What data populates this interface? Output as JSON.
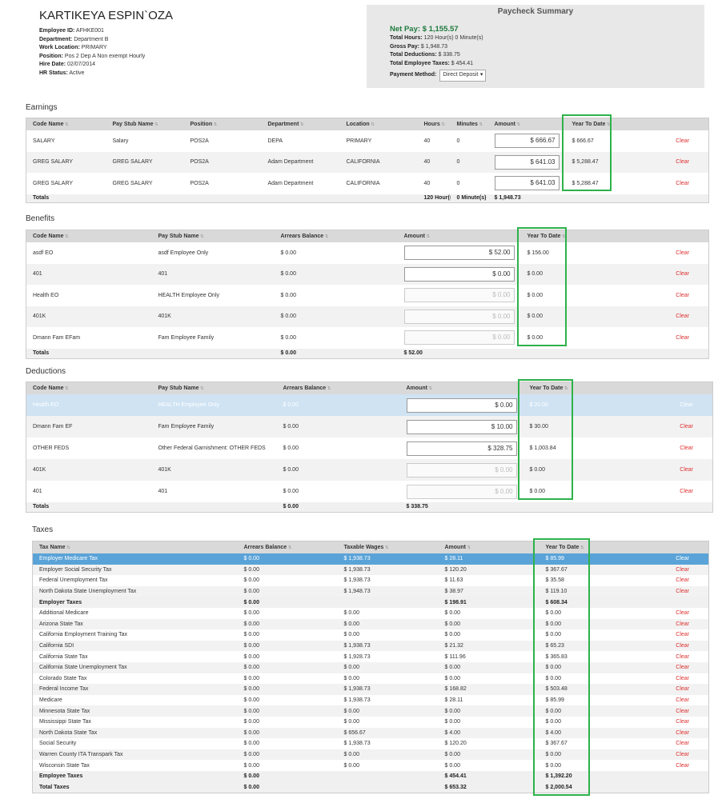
{
  "header": {
    "name": "KARTIKEYA ESPIN`OZA",
    "fields": [
      {
        "label": "Employee ID:",
        "value": "AFHKE001"
      },
      {
        "label": "Department:",
        "value": "Department B"
      },
      {
        "label": "Work Location:",
        "value": "PRIMARY"
      },
      {
        "label": "Position:",
        "value": "Pos 2 Dep A Non exempt Hourly"
      },
      {
        "label": "Hire Date:",
        "value": "02/07/2014"
      },
      {
        "label": "HR Status:",
        "value": "Active"
      }
    ]
  },
  "summary": {
    "title": "Paycheck Summary",
    "net_pay": {
      "label": "Net Pay:",
      "value": "$ 1,155.57"
    },
    "fields": [
      {
        "label": "Total Hours:",
        "value": "120 Hour(s) 0 Minute(s)"
      },
      {
        "label": "Gross Pay:",
        "value": "$ 1,948.73"
      },
      {
        "label": "Total Deductions:",
        "value": "$ 338.75"
      },
      {
        "label": "Total Employee Taxes:",
        "value": "$ 454.41"
      }
    ],
    "payment_method": {
      "label": "Payment Method:",
      "value": "Direct Deposit"
    }
  },
  "earnings": {
    "title": "Earnings",
    "action": "Clear",
    "columns": [
      "Code Name",
      "Pay Stub Name",
      "Position",
      "Department",
      "Location",
      "Hours",
      "Minutes",
      "Amount",
      "Year To Date"
    ],
    "rows": [
      {
        "cells": [
          "SALARY",
          "Salary",
          "POS2A",
          "DEPA",
          "PRIMARY",
          "40",
          "0",
          "$ 666.67",
          "$ 666.67"
        ]
      },
      {
        "cells": [
          "GREG SALARY",
          "GREG SALARY",
          "POS2A",
          "Adam Department",
          "CALIFORNIA",
          "40",
          "0",
          "$ 641.03",
          "$ 5,288.47"
        ]
      },
      {
        "cells": [
          "GREG SALARY",
          "GREG SALARY",
          "POS2A",
          "Adam Department",
          "CALIFORNIA",
          "40",
          "0",
          "$ 641.03",
          "$ 5,288.47"
        ]
      }
    ],
    "totals": [
      "Totals",
      null,
      null,
      null,
      null,
      "120 Hour(s)",
      "0 Minute(s)",
      "$ 1,948.73",
      null
    ]
  },
  "benefits": {
    "title": "Benefits",
    "action": "Clear",
    "columns": [
      "Code Name",
      "Pay Stub Name",
      "Arrears Balance",
      "Amount",
      "Year To Date"
    ],
    "rows": [
      {
        "cells": [
          "asdf EO",
          "asdf Employee Only",
          "$ 0.00",
          "$ 52.00",
          "$ 156.00"
        ]
      },
      {
        "cells": [
          "401",
          "401",
          "$ 0.00",
          "$ 0.00",
          "$ 0.00"
        ]
      },
      {
        "cells": [
          "Health EO",
          "HEALTH Employee Only",
          "$ 0.00",
          "$ 0.00",
          "$ 0.00"
        ],
        "disabled": true
      },
      {
        "cells": [
          "401K",
          "401K",
          "$ 0.00",
          "$ 0.00",
          "$ 0.00"
        ],
        "disabled": true
      },
      {
        "cells": [
          "Dmann Fam EFam",
          "Fam Employee Family",
          "$ 0.00",
          "$ 0.00",
          "$ 0.00"
        ],
        "disabled": true
      }
    ],
    "totals": [
      "Totals",
      null,
      "$ 0.00",
      "$ 52.00",
      null
    ]
  },
  "deductions": {
    "title": "Deductions",
    "action": "Clear",
    "columns": [
      "Code Name",
      "Pay Stub Name",
      "Arrears Balance",
      "Amount",
      "Year To Date"
    ],
    "rows": [
      {
        "cells": [
          "Health EO",
          "HEALTH Employee Only",
          "$ 0.00",
          "$ 0.00",
          "$ 20.00"
        ],
        "selected": true
      },
      {
        "cells": [
          "Dmann Fam EF",
          "Fam Employee Family",
          "$ 0.00",
          "$ 10.00",
          "$ 30.00"
        ]
      },
      {
        "cells": [
          "OTHER FEDS",
          "Other Federal Garnishment: OTHER FEDS",
          "$ 0.00",
          "$ 328.75",
          "$ 1,003.84"
        ]
      },
      {
        "cells": [
          "401K",
          "401K",
          "$ 0.00",
          "$ 0.00",
          "$ 0.00"
        ],
        "disabled": true
      },
      {
        "cells": [
          "401",
          "401",
          "$ 0.00",
          "$ 0.00",
          "$ 0.00"
        ],
        "disabled": true
      }
    ],
    "totals": [
      "Totals",
      null,
      "$ 0.00",
      "$ 338.75",
      null
    ]
  },
  "taxes": {
    "title": "Taxes",
    "action": "Clear",
    "columns": [
      "Tax Name",
      "Arrears Balance",
      "Taxable Wages",
      "Amount",
      "Year To Date"
    ],
    "rows": [
      {
        "cells": [
          "Employer Medicare Tax",
          "$ 0.00",
          "$ 1,938.73",
          "$ 28.11",
          "$ 85.99"
        ],
        "selected": true
      },
      {
        "cells": [
          "Employer Social Security Tax",
          "$ 0.00",
          "$ 1,938.73",
          "$ 120.20",
          "$ 367.67"
        ]
      },
      {
        "cells": [
          "Federal Unemployment Tax",
          "$ 0.00",
          "$ 1,938.73",
          "$ 11.63",
          "$ 35.58"
        ]
      },
      {
        "cells": [
          "North Dakota State Unemployment Tax",
          "$ 0.00",
          "$ 1,948.73",
          "$ 38.97",
          "$ 119.10"
        ]
      },
      {
        "cells": [
          "Employer Taxes",
          "$ 0.00",
          null,
          "$ 198.91",
          "$ 608.34"
        ],
        "total": true
      },
      {
        "cells": [
          "Additional Medicare",
          "$ 0.00",
          "$ 0.00",
          "$ 0.00",
          "$ 0.00"
        ]
      },
      {
        "cells": [
          "Arizona State Tax",
          "$ 0.00",
          "$ 0.00",
          "$ 0.00",
          "$ 0.00"
        ]
      },
      {
        "cells": [
          "California Employment Training Tax",
          "$ 0.00",
          "$ 0.00",
          "$ 0.00",
          "$ 0.00"
        ]
      },
      {
        "cells": [
          "California SDI",
          "$ 0.00",
          "$ 1,938.73",
          "$ 21.32",
          "$ 65.23"
        ]
      },
      {
        "cells": [
          "California State Tax",
          "$ 0.00",
          "$ 1,928.73",
          "$ 111.96",
          "$ 365.83"
        ]
      },
      {
        "cells": [
          "California State Unemployment Tax",
          "$ 0.00",
          "$ 0.00",
          "$ 0.00",
          "$ 0.00"
        ]
      },
      {
        "cells": [
          "Colorado State Tax",
          "$ 0.00",
          "$ 0.00",
          "$ 0.00",
          "$ 0.00"
        ]
      },
      {
        "cells": [
          "Federal Income Tax",
          "$ 0.00",
          "$ 1,938.73",
          "$ 168.82",
          "$ 503.48"
        ]
      },
      {
        "cells": [
          "Medicare",
          "$ 0.00",
          "$ 1,938.73",
          "$ 28.11",
          "$ 85.99"
        ]
      },
      {
        "cells": [
          "Minnesota State Tax",
          "$ 0.00",
          "$ 0.00",
          "$ 0.00",
          "$ 0.00"
        ]
      },
      {
        "cells": [
          "Mississippi State Tax",
          "$ 0.00",
          "$ 0.00",
          "$ 0.00",
          "$ 0.00"
        ]
      },
      {
        "cells": [
          "North Dakota State Tax",
          "$ 0.00",
          "$ 656.67",
          "$ 4.00",
          "$ 4.00"
        ]
      },
      {
        "cells": [
          "Social Security",
          "$ 0.00",
          "$ 1,938.73",
          "$ 120.20",
          "$ 367.67"
        ]
      },
      {
        "cells": [
          "Warren County ITA Transpark Tax",
          "$ 0.00",
          "$ 0.00",
          "$ 0.00",
          "$ 0.00"
        ]
      },
      {
        "cells": [
          "Wisconsin State Tax",
          "$ 0.00",
          "$ 0.00",
          "$ 0.00",
          "$ 0.00"
        ]
      },
      {
        "cells": [
          "Employee Taxes",
          "$ 0.00",
          null,
          "$ 454.41",
          "$ 1,392.20"
        ],
        "total": true
      },
      {
        "cells": [
          "Total Taxes",
          "$ 0.00",
          null,
          "$ 653.32",
          "$ 2,000.54"
        ],
        "total": true
      }
    ]
  }
}
